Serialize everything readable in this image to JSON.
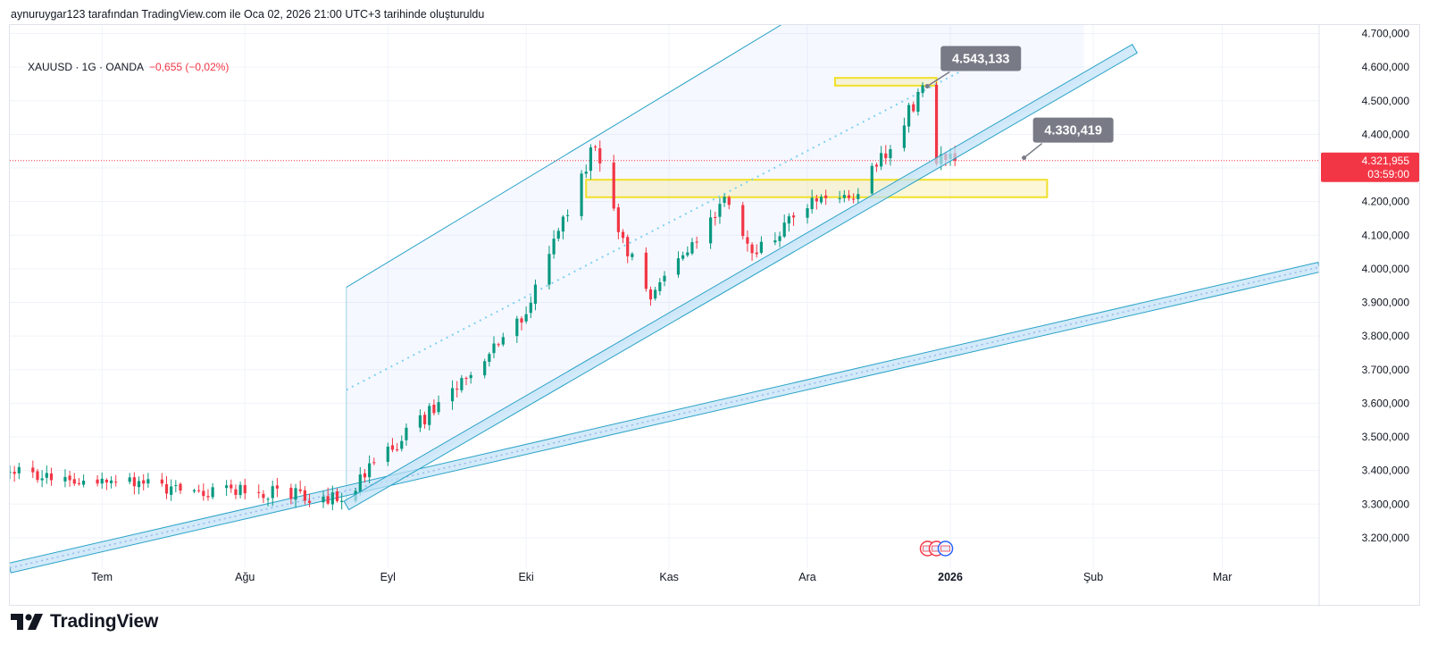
{
  "attribution": "aynuruygar123 tarafından TradingView.com ile Oca 02, 2026 21:00 UTC+3 tarihinde oluşturuldu",
  "legend": {
    "symbol": "XAUUSD · 1G · OANDA",
    "change": "−0,655 (−0,02%)"
  },
  "brand": {
    "name": "TradingView"
  },
  "colors": {
    "up": "#089981",
    "down": "#f23645",
    "channel": "#2aa3c8",
    "zone": "#f0e02a",
    "callout": "#787b86",
    "price_tag": "#f23645"
  },
  "chart_data": {
    "type": "candlestick",
    "symbol": "XAUUSD",
    "timeframe": "1G",
    "ylim": [
      3120,
      4720
    ],
    "y_ticks": [
      "4.700,000",
      "4.600,000",
      "4.500,000",
      "4.400,000",
      "4.300,000",
      "4.200,000",
      "4.100,000",
      "4.000,000",
      "3.900,000",
      "3.800,000",
      "3.700,000",
      "3.600,000",
      "3.500,000",
      "3.400,000",
      "3.300,000",
      "3.200,000"
    ],
    "y_tick_values": [
      4700,
      4600,
      4500,
      4400,
      4300,
      4200,
      4100,
      4000,
      3900,
      3800,
      3700,
      3600,
      3500,
      3400,
      3300,
      3200
    ],
    "x_ticks": [
      {
        "label": "Tem",
        "date": "2025-07-01",
        "bold": false
      },
      {
        "label": "Ağu",
        "date": "2025-08-01",
        "bold": false
      },
      {
        "label": "Eyl",
        "date": "2025-09-01",
        "bold": false
      },
      {
        "label": "Eki",
        "date": "2025-10-01",
        "bold": false
      },
      {
        "label": "Kas",
        "date": "2025-11-01",
        "bold": false
      },
      {
        "label": "Ara",
        "date": "2025-12-01",
        "bold": false
      },
      {
        "label": "2026",
        "date": "2026-01-01",
        "bold": true
      },
      {
        "label": "Şub",
        "date": "2026-02-01",
        "bold": false
      },
      {
        "label": "Mar",
        "date": "2026-03-01",
        "bold": false
      }
    ],
    "x_range": [
      "2025-06-11",
      "2026-03-22"
    ],
    "price_line": {
      "value": 4321.955,
      "label": "4.321,955",
      "countdown": "03:59:00"
    },
    "callouts": [
      {
        "label": "4.543,133",
        "value": 4543.133,
        "date": "2025-12-27"
      },
      {
        "label": "4.330,419",
        "value": 4330.419,
        "date": "2026-01-17"
      }
    ],
    "zones": [
      {
        "name": "resistance-zone",
        "from": "2025-12-07",
        "to": "2025-12-29",
        "low": 4545,
        "high": 4568
      },
      {
        "name": "support-zone",
        "from": "2025-10-14",
        "to": "2026-01-22",
        "low": 4213,
        "high": 4265
      }
    ],
    "channel": {
      "start": "2025-08-23",
      "upper": [
        [
          "2025-08-23",
          3945
        ],
        [
          "2025-11-27",
          4740
        ]
      ],
      "middle": [
        [
          "2025-08-23",
          3640
        ],
        [
          "2026-01-05",
          4600
        ]
      ],
      "lower": [
        [
          "2025-08-23",
          3296
        ],
        [
          "2026-02-10",
          4655
        ]
      ],
      "fill_right": "2026-01-30"
    },
    "trendline": {
      "points": [
        [
          "2025-06-11",
          3110
        ],
        [
          "2026-03-22",
          4005
        ]
      ]
    },
    "anchors": [
      [
        "2025-06-11",
        3400
      ],
      [
        "2025-07-15",
        3350
      ],
      [
        "2025-08-22",
        3318
      ],
      [
        "2025-09-15",
        3640
      ],
      [
        "2025-10-01",
        3870
      ],
      [
        "2025-10-16",
        4380
      ],
      [
        "2025-10-22",
        4080
      ],
      [
        "2025-10-28",
        3930
      ],
      [
        "2025-11-13",
        4200
      ],
      [
        "2025-11-19",
        4030
      ],
      [
        "2025-12-01",
        4200
      ],
      [
        "2025-12-10",
        4200
      ],
      [
        "2025-12-18",
        4340
      ],
      [
        "2025-12-26",
        4540
      ],
      [
        "2025-12-29",
        4330
      ],
      [
        "2026-01-02",
        4322
      ]
    ],
    "events": [
      {
        "date": "2025-12-29",
        "type": "economic-event"
      }
    ]
  }
}
